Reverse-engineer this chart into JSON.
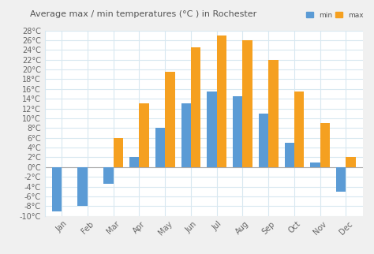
{
  "months": [
    "Jan",
    "Feb",
    "Mar",
    "Apr",
    "May",
    "Jun",
    "Jul",
    "Aug",
    "Sep",
    "Oct",
    "Nov",
    "Dec"
  ],
  "min_temps": [
    -9,
    -8,
    -3.5,
    2,
    8,
    13,
    15.5,
    14.5,
    11,
    5,
    1,
    -5
  ],
  "max_temps": [
    0,
    0,
    6,
    13,
    19.5,
    24.5,
    27,
    26,
    22,
    15.5,
    9,
    2
  ],
  "min_color": "#5b9bd5",
  "max_color": "#f5a020",
  "title": "Average max / min temperatures (°C ) in Rochester",
  "ytick_values": [
    -10,
    -8,
    -6,
    -4,
    -2,
    0,
    2,
    4,
    6,
    8,
    10,
    12,
    14,
    16,
    18,
    20,
    22,
    24,
    26,
    28
  ],
  "ylabel_ticks": [
    "-10°C",
    "-8°C",
    "-6°C",
    "-4°C",
    "-2°C",
    "0°C",
    "2°C",
    "4°C",
    "6°C",
    "8°C",
    "10°C",
    "12°C",
    "14°C",
    "16°C",
    "18°C",
    "20°C",
    "22°C",
    "24°C",
    "26°C",
    "28°C"
  ],
  "ylim": [
    -10,
    28
  ],
  "plot_bg_color": "#ffffff",
  "fig_bg_color": "#f0f0f0",
  "grid_color": "#d8e8f0",
  "legend_min_label": "min",
  "legend_max_label": "max",
  "title_fontsize": 8,
  "tick_fontsize": 7,
  "bar_width": 0.38,
  "zero_line_color": "#aaaaaa"
}
